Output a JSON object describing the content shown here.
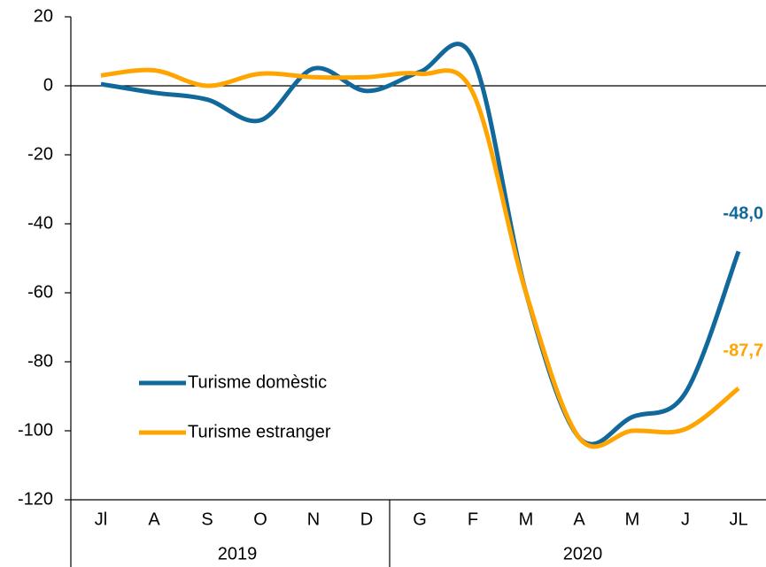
{
  "chart_data": {
    "type": "line",
    "categories": [
      "Jl",
      "A",
      "S",
      "O",
      "N",
      "D",
      "G",
      "F",
      "M",
      "A",
      "M",
      "J",
      "JL"
    ],
    "x_groups": [
      {
        "label": "2019",
        "size": 6
      },
      {
        "label": "2020",
        "size": 7
      }
    ],
    "series": [
      {
        "name": "Turisme domèstic",
        "color": "#11689a",
        "values": [
          0.5,
          -2,
          -4,
          -10,
          5,
          -1.5,
          4,
          8,
          -60,
          -102,
          -96,
          -89,
          -48.0
        ],
        "value_labels": [
          null,
          null,
          null,
          null,
          null,
          null,
          null,
          null,
          null,
          null,
          null,
          null,
          "-48,0"
        ]
      },
      {
        "name": "Turisme estranger",
        "color": "#ffa400",
        "values": [
          3,
          4.5,
          0,
          3.5,
          2.5,
          2.5,
          3.5,
          -2,
          -60,
          -102,
          -100,
          -99.5,
          -87.7
        ],
        "value_labels": [
          null,
          null,
          null,
          null,
          null,
          null,
          null,
          null,
          null,
          null,
          null,
          null,
          "-87,7"
        ]
      }
    ],
    "ylim": [
      -120,
      20
    ],
    "yticks": [
      -120,
      -100,
      -80,
      -60,
      -40,
      -20,
      0,
      20
    ],
    "grid": false,
    "zero_line": true,
    "legend": "lower left"
  }
}
